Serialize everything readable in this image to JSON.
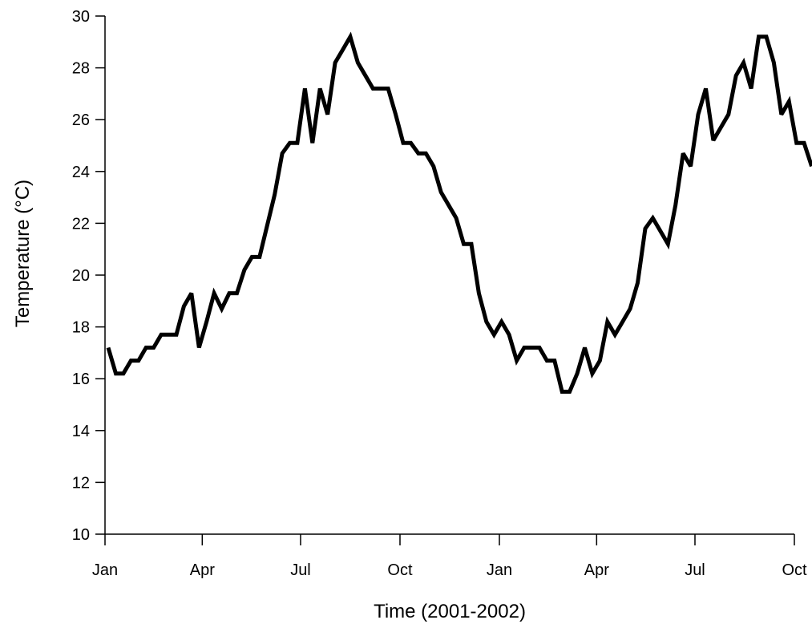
{
  "chart_data": {
    "type": "line",
    "xlabel": "Time (2001-2002)",
    "ylabel": "Temperature (°C)",
    "xlim": [
      "2001-01-01",
      "2002-10-01"
    ],
    "ylim": [
      10,
      30
    ],
    "yticks": [
      10,
      12,
      14,
      16,
      18,
      20,
      22,
      24,
      26,
      28,
      30
    ],
    "xticks": [
      {
        "date": "2001-01-01",
        "label": "Jan"
      },
      {
        "date": "2001-04-01",
        "label": "Apr"
      },
      {
        "date": "2001-07-01",
        "label": "Jul"
      },
      {
        "date": "2001-10-01",
        "label": "Oct"
      },
      {
        "date": "2002-01-01",
        "label": "Jan"
      },
      {
        "date": "2002-04-01",
        "label": "Apr"
      },
      {
        "date": "2002-07-01",
        "label": "Jul"
      },
      {
        "date": "2002-10-01",
        "label": "Oct"
      }
    ],
    "grid": false,
    "legend": "none",
    "x": [
      "2001-01-04",
      "2001-01-11",
      "2001-01-18",
      "2001-01-25",
      "2001-02-01",
      "2001-02-08",
      "2001-02-15",
      "2001-02-22",
      "2001-03-01",
      "2001-03-08",
      "2001-03-15",
      "2001-03-22",
      "2001-03-29",
      "2001-04-05",
      "2001-04-12",
      "2001-04-19",
      "2001-04-26",
      "2001-05-03",
      "2001-05-10",
      "2001-05-17",
      "2001-05-24",
      "2001-05-31",
      "2001-06-07",
      "2001-06-14",
      "2001-06-21",
      "2001-06-28",
      "2001-07-05",
      "2001-07-12",
      "2001-07-19",
      "2001-07-26",
      "2001-08-02",
      "2001-08-09",
      "2001-08-16",
      "2001-08-23",
      "2001-08-30",
      "2001-09-06",
      "2001-09-13",
      "2001-09-20",
      "2001-09-27",
      "2001-10-04",
      "2001-10-11",
      "2001-10-18",
      "2001-10-25",
      "2001-11-01",
      "2001-11-08",
      "2001-11-15",
      "2001-11-22",
      "2001-11-29",
      "2001-12-06",
      "2001-12-13",
      "2001-12-20",
      "2001-12-27",
      "2002-01-03",
      "2002-01-10",
      "2002-01-17",
      "2002-01-24",
      "2002-01-31",
      "2002-02-07",
      "2002-02-14",
      "2002-02-21",
      "2002-02-28",
      "2002-03-07",
      "2002-03-14",
      "2002-03-21",
      "2002-03-28",
      "2002-04-04",
      "2002-04-11",
      "2002-04-18",
      "2002-04-25",
      "2002-05-02",
      "2002-05-09",
      "2002-05-16",
      "2002-05-23",
      "2002-05-30",
      "2002-06-06",
      "2002-06-13",
      "2002-06-20",
      "2002-06-27",
      "2002-07-04",
      "2002-07-11",
      "2002-07-18",
      "2002-07-25",
      "2002-08-01",
      "2002-08-08",
      "2002-08-15",
      "2002-08-22",
      "2002-08-29",
      "2002-09-05",
      "2002-09-12",
      "2002-09-19",
      "2002-09-26",
      "2002-10-03",
      "2002-10-10",
      "2002-10-17"
    ],
    "y": [
      17.2,
      16.2,
      16.2,
      16.7,
      16.7,
      17.2,
      17.2,
      17.7,
      17.7,
      17.7,
      18.8,
      19.3,
      17.2,
      18.2,
      19.3,
      18.7,
      19.3,
      19.3,
      20.2,
      20.7,
      20.7,
      21.9,
      23.1,
      24.7,
      25.1,
      25.1,
      27.2,
      25.1,
      27.2,
      26.2,
      28.2,
      28.7,
      29.2,
      28.2,
      27.7,
      27.2,
      27.2,
      27.2,
      26.2,
      25.1,
      25.1,
      24.7,
      24.7,
      24.2,
      23.2,
      22.7,
      22.2,
      21.2,
      21.2,
      19.3,
      18.2,
      17.7,
      18.2,
      17.7,
      16.7,
      17.2,
      17.2,
      17.2,
      16.7,
      16.7,
      15.5,
      15.5,
      16.2,
      17.2,
      16.2,
      16.7,
      18.2,
      17.7,
      18.2,
      18.7,
      19.7,
      21.8,
      22.2,
      21.7,
      21.2,
      22.7,
      24.7,
      24.2,
      26.2,
      27.2,
      25.2,
      25.7,
      26.2,
      27.7,
      28.2,
      27.2,
      29.2,
      29.2,
      28.2,
      26.2,
      26.7,
      25.1,
      25.1,
      24.2
    ]
  },
  "colors": {
    "background": "#ffffff",
    "line": "#000000",
    "axis": "#000000"
  }
}
